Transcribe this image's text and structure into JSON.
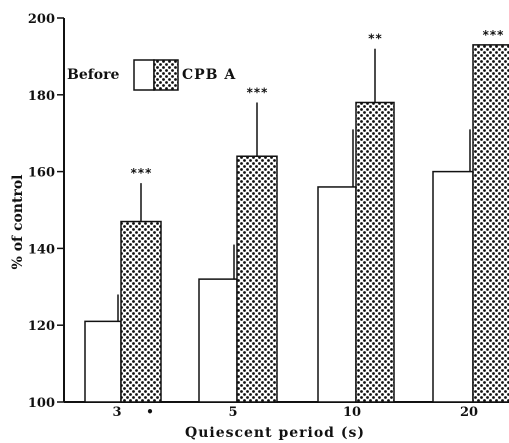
{
  "chart_data": {
    "type": "bar",
    "categories": [
      "3",
      "5",
      "10",
      "20"
    ],
    "series": [
      {
        "name": "Before",
        "values": [
          121,
          132,
          156,
          160
        ],
        "errors": [
          7,
          9,
          15,
          11
        ],
        "pattern": "white"
      },
      {
        "name": "CPB A",
        "values": [
          147,
          164,
          178,
          193
        ],
        "errors": [
          10,
          14,
          14,
          0
        ],
        "pattern": "dotted"
      }
    ],
    "significance": [
      "***",
      "***",
      "**",
      "***"
    ],
    "extra_mark": "•",
    "title": "",
    "xlabel": "Quiescent period (s)",
    "ylabel": "% of control",
    "ylim": [
      100,
      200
    ],
    "yticks": [
      100,
      120,
      140,
      160,
      180,
      200
    ],
    "legend": "top-left",
    "grid": false
  }
}
